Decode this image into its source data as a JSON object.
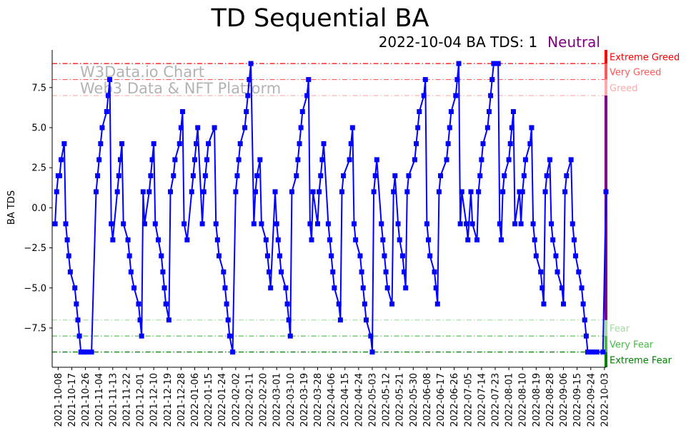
{
  "chart_data": {
    "type": "line",
    "title": "TD Sequential BA",
    "subtitle": "2022-10-04 BA TDS: 1",
    "status": "Neutral",
    "ylabel": "BA TDS",
    "xlabel": "",
    "watermark": [
      "W3Data.io Chart",
      "Web3 Data & NFT Platform"
    ],
    "start_date": "2021-10-05",
    "xlim_days": [
      0,
      364
    ],
    "ylim": [
      -9.95,
      9.85
    ],
    "y_ticks": [
      7.5,
      5.0,
      2.5,
      0.0,
      -2.5,
      -5.0,
      -7.5
    ],
    "y_tick_labels": [
      "7.5",
      "5.0",
      "2.5",
      "0.0",
      "−2.5",
      "−5.0",
      "−7.5"
    ],
    "x_tick_first_day": 3,
    "x_tick_step_days": 9,
    "x_tick_labels": [
      "2021-10-08",
      "2021-10-17",
      "2021-10-26",
      "2021-11-04",
      "2021-11-13",
      "2021-11-22",
      "2021-12-01",
      "2021-12-10",
      "2021-12-19",
      "2021-12-28",
      "2022-01-06",
      "2022-01-15",
      "2022-01-24",
      "2022-02-02",
      "2022-02-11",
      "2022-02-20",
      "2022-03-01",
      "2022-03-10",
      "2022-03-19",
      "2022-03-28",
      "2022-04-06",
      "2022-04-15",
      "2022-04-24",
      "2022-05-03",
      "2022-05-12",
      "2022-05-21",
      "2022-05-30",
      "2022-06-08",
      "2022-06-17",
      "2022-06-26",
      "2022-07-05",
      "2022-07-14",
      "2022-07-23",
      "2022-08-01",
      "2022-08-10",
      "2022-08-19",
      "2022-08-28",
      "2022-09-06",
      "2022-09-15",
      "2022-09-24",
      "2022-10-03"
    ],
    "series": [
      {
        "name": "BA TDS",
        "color": "#0000ff",
        "x_days": [
          1,
          2,
          3,
          4,
          5,
          7,
          8,
          9,
          10,
          11,
          14,
          15,
          16,
          17,
          18,
          20,
          22,
          25,
          28,
          29,
          30,
          31,
          32,
          35,
          36,
          37,
          38,
          39,
          42,
          43,
          44,
          45,
          46,
          49,
          50,
          51,
          53,
          56,
          57,
          58,
          59,
          60,
          63,
          64,
          65,
          66,
          67,
          69,
          71,
          72,
          73,
          74,
          76,
          77,
          79,
          80,
          83,
          84,
          85,
          86,
          88,
          91,
          92,
          93,
          94,
          95,
          98,
          99,
          100,
          101,
          102,
          106,
          107,
          108,
          109,
          112,
          113,
          114,
          115,
          116,
          118,
          120,
          121,
          122,
          123,
          126,
          127,
          128,
          129,
          130,
          132,
          133,
          134,
          136,
          137,
          140,
          141,
          142,
          143,
          146,
          147,
          148,
          149,
          150,
          153,
          154,
          155,
          156,
          157,
          160,
          161,
          162,
          163,
          164,
          167,
          168,
          169,
          170,
          171,
          174,
          175,
          176,
          177,
          178,
          181,
          182,
          183,
          184,
          185,
          188,
          189,
          190,
          191,
          195,
          196,
          197,
          198,
          199,
          202,
          203,
          204,
          205,
          206,
          209,
          210,
          211,
          212,
          213,
          216,
          217,
          218,
          219,
          220,
          223,
          224,
          225,
          227,
          228,
          230,
          231,
          232,
          233,
          234,
          238,
          239,
          240,
          241,
          244,
          245,
          246,
          247,
          248,
          251,
          252,
          253,
          254,
          255,
          259,
          260,
          261,
          262,
          265,
          266,
          267,
          268,
          269,
          272,
          273,
          275,
          276,
          279,
          280,
          281,
          282,
          283,
          286,
          287,
          288,
          289,
          290,
          293,
          294,
          295,
          296,
          297,
          300,
          301,
          302,
          303,
          304,
          307,
          308,
          309,
          310,
          311,
          314,
          315,
          316,
          317,
          318,
          321,
          322,
          323,
          324,
          325,
          327,
          328,
          329,
          331,
          332,
          335,
          336,
          337,
          338,
          341,
          342,
          343,
          344,
          346,
          348,
          349,
          350,
          351,
          352,
          355,
          358,
          362,
          364
        ],
        "values": [
          -1,
          1,
          2,
          2,
          3,
          4,
          -1,
          -2,
          -3,
          -4,
          -5,
          -6,
          -7,
          -8,
          -9,
          -9,
          -9,
          -9,
          1,
          2,
          3,
          4,
          5,
          6,
          7,
          8,
          -1,
          -2,
          1,
          2,
          3,
          4,
          -1,
          -2,
          -3,
          -4,
          -5,
          -6,
          -7,
          -8,
          1,
          -1,
          1,
          2,
          3,
          4,
          -1,
          -2,
          -3,
          -4,
          -5,
          -6,
          -7,
          1,
          2,
          3,
          4,
          5,
          6,
          -1,
          -2,
          1,
          2,
          3,
          4,
          5,
          -1,
          1,
          2,
          3,
          4,
          5,
          -1,
          -2,
          -3,
          -4,
          -5,
          -6,
          -7,
          -8,
          -9,
          1,
          2,
          3,
          4,
          5,
          6,
          7,
          8,
          9,
          -1,
          1,
          2,
          3,
          -1,
          -2,
          -3,
          -4,
          -5,
          1,
          -1,
          -2,
          -3,
          -4,
          -5,
          -6,
          -7,
          -8,
          1,
          2,
          3,
          4,
          5,
          6,
          7,
          8,
          -1,
          -2,
          1,
          -1,
          1,
          2,
          3,
          4,
          -1,
          -2,
          -3,
          -4,
          -5,
          -6,
          -7,
          1,
          2,
          3,
          4,
          5,
          -1,
          -2,
          -3,
          -4,
          -5,
          -6,
          -7,
          -8,
          -9,
          1,
          2,
          3,
          -1,
          -2,
          -3,
          -4,
          -5,
          -6,
          1,
          2,
          -1,
          -2,
          -3,
          -4,
          -5,
          1,
          2,
          3,
          4,
          5,
          6,
          7,
          8,
          -1,
          -2,
          -3,
          -4,
          -5,
          -6,
          1,
          2,
          3,
          4,
          5,
          6,
          7,
          8,
          9,
          -1,
          1,
          -1,
          -2,
          1,
          -1,
          -2,
          1,
          2,
          3,
          4,
          5,
          6,
          7,
          8,
          9,
          9,
          -1,
          -2,
          1,
          2,
          3,
          4,
          5,
          6,
          -1,
          1,
          -1,
          1,
          2,
          3,
          4,
          5,
          -1,
          -2,
          -3,
          -4,
          -5,
          -6,
          1,
          2,
          3,
          -1,
          -2,
          -3,
          -4,
          -5,
          -6,
          1,
          2,
          3,
          -1,
          -2,
          -3,
          -4,
          -5,
          -6,
          -7,
          -8,
          -9,
          -9,
          -9,
          -9,
          1
        ]
      }
    ],
    "levels": [
      {
        "label": "Extreme Greed",
        "value": 9,
        "color": "#ff0000",
        "band": [
          9,
          9.85
        ]
      },
      {
        "label": "Very Greed",
        "value": 8,
        "color": "#ff5a5a",
        "band": [
          8,
          9
        ]
      },
      {
        "label": "Greed",
        "value": 7,
        "color": "#ffaaaa",
        "band": [
          7,
          8
        ]
      },
      {
        "label": "Fear",
        "value": -7,
        "color": "#a0dca0",
        "band": [
          -8,
          -7
        ]
      },
      {
        "label": "Very Fear",
        "value": -8,
        "color": "#4cb84c",
        "band": [
          -9,
          -8
        ]
      },
      {
        "label": "Extreme Fear",
        "value": -9,
        "color": "#008000",
        "band": [
          -9.95,
          -9
        ]
      }
    ],
    "neutral_band": {
      "range": [
        -7,
        7
      ],
      "color": "#800080"
    },
    "grid": false,
    "legend": "none"
  }
}
